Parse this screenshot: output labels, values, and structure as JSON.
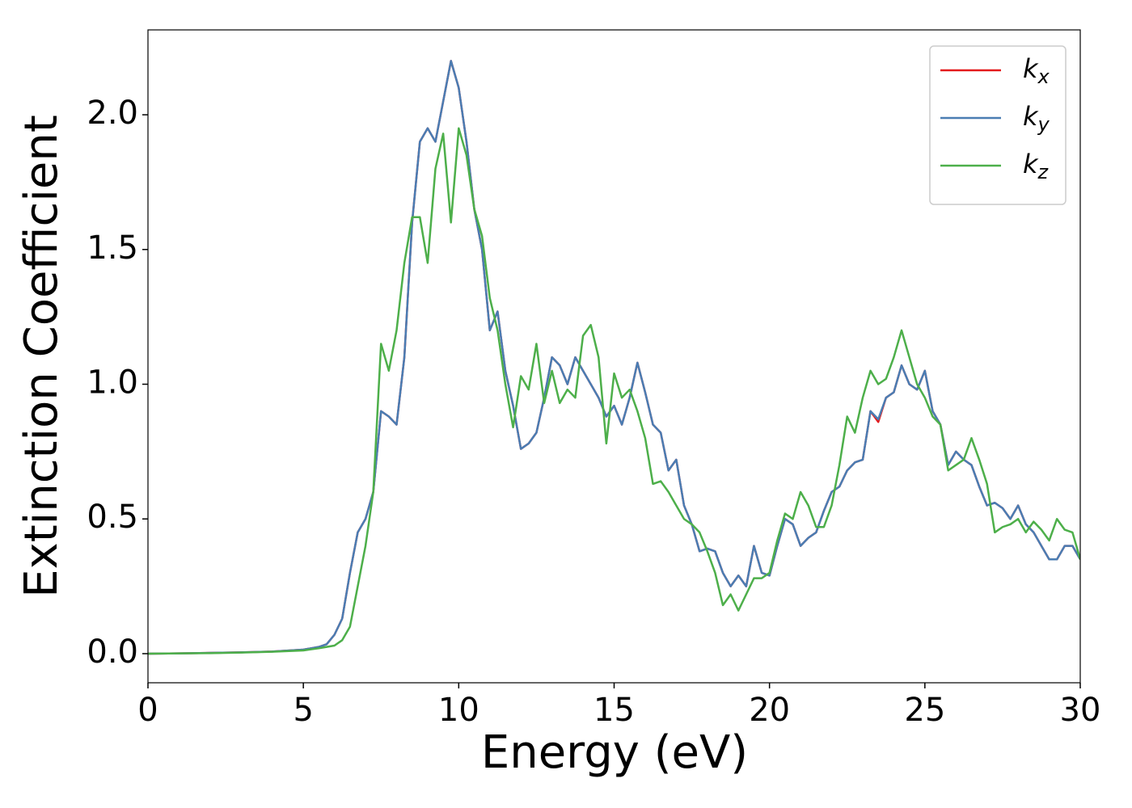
{
  "chart_data": {
    "type": "line",
    "xlabel": "Energy (eV)",
    "ylabel": "Extinction Coefficient",
    "x": [
      0,
      1,
      2,
      3,
      4,
      5,
      5.5,
      5.75,
      6,
      6.25,
      6.5,
      6.75,
      7,
      7.25,
      7.5,
      7.75,
      8,
      8.25,
      8.5,
      8.75,
      9,
      9.25,
      9.5,
      9.75,
      10,
      10.25,
      10.5,
      10.75,
      11,
      11.25,
      11.5,
      11.75,
      12,
      12.25,
      12.5,
      12.75,
      13,
      13.25,
      13.5,
      13.75,
      14,
      14.25,
      14.5,
      14.75,
      15,
      15.25,
      15.5,
      15.75,
      16,
      16.25,
      16.5,
      16.75,
      17,
      17.25,
      17.5,
      17.75,
      18,
      18.25,
      18.5,
      18.75,
      19,
      19.25,
      19.5,
      19.75,
      20,
      20.25,
      20.5,
      20.75,
      21,
      21.25,
      21.5,
      21.75,
      22,
      22.25,
      22.5,
      22.75,
      23,
      23.25,
      23.5,
      23.75,
      24,
      24.25,
      24.5,
      24.75,
      25,
      25.25,
      25.5,
      25.75,
      26,
      26.25,
      26.5,
      26.75,
      27,
      27.25,
      27.5,
      27.75,
      28,
      28.25,
      28.5,
      28.75,
      29,
      29.25,
      29.5,
      29.75,
      30
    ],
    "series": [
      {
        "name": "kx",
        "color": "#e41a1c",
        "values": [
          0,
          0.001,
          0.003,
          0.005,
          0.008,
          0.015,
          0.025,
          0.035,
          0.07,
          0.13,
          0.3,
          0.45,
          0.5,
          0.6,
          0.9,
          0.88,
          0.85,
          1.1,
          1.6,
          1.9,
          1.95,
          1.9,
          2.05,
          2.2,
          2.1,
          1.9,
          1.65,
          1.5,
          1.2,
          1.27,
          1.05,
          0.92,
          0.76,
          0.78,
          0.82,
          0.95,
          1.1,
          1.07,
          1.0,
          1.1,
          1.05,
          1.0,
          0.95,
          0.88,
          0.92,
          0.85,
          0.95,
          1.08,
          0.97,
          0.85,
          0.82,
          0.68,
          0.72,
          0.55,
          0.48,
          0.38,
          0.39,
          0.38,
          0.3,
          0.25,
          0.29,
          0.25,
          0.4,
          0.3,
          0.29,
          0.4,
          0.5,
          0.48,
          0.4,
          0.43,
          0.45,
          0.53,
          0.6,
          0.62,
          0.68,
          0.71,
          0.72,
          0.9,
          0.86,
          0.95,
          0.97,
          1.07,
          1.0,
          0.98,
          1.05,
          0.9,
          0.85,
          0.7,
          0.75,
          0.72,
          0.7,
          0.62,
          0.55,
          0.56,
          0.54,
          0.5,
          0.55,
          0.48,
          0.45,
          0.4,
          0.35,
          0.35,
          0.4,
          0.4,
          0.35
        ]
      },
      {
        "name": "ky",
        "color": "#4a7db3",
        "values": [
          0,
          0.001,
          0.003,
          0.005,
          0.008,
          0.015,
          0.025,
          0.035,
          0.07,
          0.13,
          0.3,
          0.45,
          0.5,
          0.6,
          0.9,
          0.88,
          0.85,
          1.1,
          1.6,
          1.9,
          1.95,
          1.9,
          2.05,
          2.2,
          2.1,
          1.9,
          1.65,
          1.5,
          1.2,
          1.27,
          1.05,
          0.92,
          0.76,
          0.78,
          0.82,
          0.95,
          1.1,
          1.07,
          1.0,
          1.1,
          1.05,
          1.0,
          0.95,
          0.88,
          0.92,
          0.85,
          0.95,
          1.08,
          0.97,
          0.85,
          0.82,
          0.68,
          0.72,
          0.55,
          0.48,
          0.38,
          0.39,
          0.38,
          0.3,
          0.25,
          0.29,
          0.25,
          0.4,
          0.3,
          0.29,
          0.4,
          0.5,
          0.48,
          0.4,
          0.43,
          0.45,
          0.53,
          0.6,
          0.62,
          0.68,
          0.71,
          0.72,
          0.9,
          0.87,
          0.95,
          0.97,
          1.07,
          1.0,
          0.98,
          1.05,
          0.9,
          0.85,
          0.7,
          0.75,
          0.72,
          0.7,
          0.62,
          0.55,
          0.56,
          0.54,
          0.5,
          0.55,
          0.48,
          0.45,
          0.4,
          0.35,
          0.35,
          0.4,
          0.4,
          0.35
        ]
      },
      {
        "name": "kz",
        "color": "#4daf4a",
        "values": [
          0,
          0.001,
          0.002,
          0.004,
          0.007,
          0.012,
          0.02,
          0.025,
          0.03,
          0.05,
          0.1,
          0.25,
          0.4,
          0.6,
          1.15,
          1.05,
          1.2,
          1.45,
          1.62,
          1.62,
          1.45,
          1.8,
          1.93,
          1.6,
          1.95,
          1.85,
          1.65,
          1.55,
          1.32,
          1.2,
          1.0,
          0.84,
          1.03,
          0.98,
          1.15,
          0.93,
          1.05,
          0.93,
          0.98,
          0.95,
          1.18,
          1.22,
          1.1,
          0.78,
          1.04,
          0.95,
          0.98,
          0.9,
          0.8,
          0.63,
          0.64,
          0.6,
          0.55,
          0.5,
          0.48,
          0.45,
          0.38,
          0.3,
          0.18,
          0.22,
          0.16,
          0.22,
          0.28,
          0.28,
          0.3,
          0.42,
          0.52,
          0.5,
          0.6,
          0.55,
          0.47,
          0.47,
          0.55,
          0.7,
          0.88,
          0.82,
          0.95,
          1.05,
          1.0,
          1.02,
          1.1,
          1.2,
          1.1,
          1.0,
          0.95,
          0.88,
          0.85,
          0.68,
          0.7,
          0.72,
          0.8,
          0.72,
          0.63,
          0.45,
          0.47,
          0.48,
          0.5,
          0.45,
          0.49,
          0.46,
          0.42,
          0.5,
          0.46,
          0.45,
          0.35
        ]
      }
    ],
    "xlim": [
      0,
      30
    ],
    "ylim": [
      -0.108,
      2.315
    ],
    "xticks": [
      0,
      5,
      10,
      15,
      20,
      25,
      30
    ],
    "yticks": [
      {
        "value": 0,
        "label": "0.0"
      },
      {
        "value": 0.5,
        "label": "0.5"
      },
      {
        "value": 1,
        "label": "1.0"
      },
      {
        "value": 1.5,
        "label": "1.5"
      },
      {
        "value": 2,
        "label": "2.0"
      }
    ],
    "grid": false,
    "legend": "upper right"
  }
}
